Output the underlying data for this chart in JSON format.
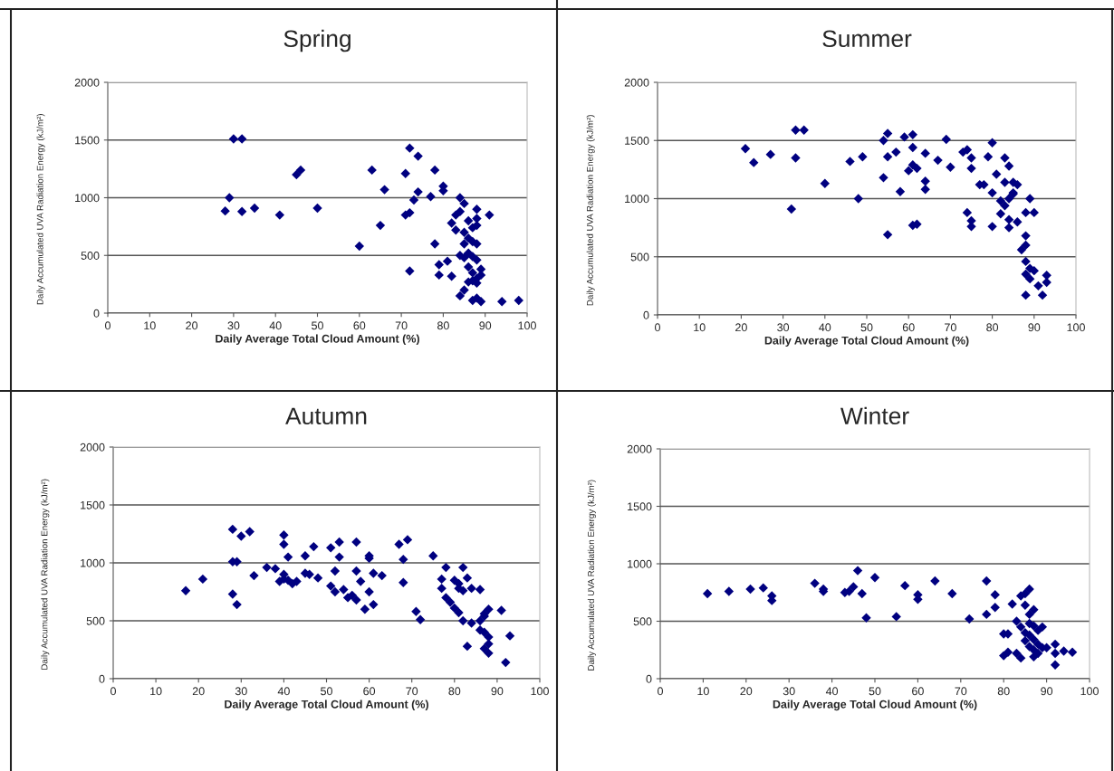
{
  "chart_data": [
    {
      "type": "scatter",
      "title": "Spring",
      "xlabel": "Daily Average Total Cloud Amount (%)",
      "ylabel": "Daily Accumulated UVA Radiation Energy (kJ/m²)",
      "xlim": [
        0,
        100
      ],
      "xticks": [
        0,
        10,
        20,
        30,
        40,
        50,
        60,
        70,
        80,
        90,
        100
      ],
      "ylim": [
        0,
        2000
      ],
      "yticks": [
        0,
        500,
        1000,
        1500,
        2000
      ],
      "grid": "y",
      "marker": "diamond",
      "series": [
        {
          "color": "#000080",
          "x": [
            30,
            32,
            29,
            28,
            32,
            35,
            41,
            50,
            45,
            46,
            60,
            63,
            65,
            66,
            71,
            72,
            74,
            78,
            80,
            80,
            74,
            73,
            77,
            71,
            72,
            72,
            78,
            79,
            79,
            81,
            82,
            84,
            85,
            82,
            83,
            84,
            85,
            84,
            86,
            85,
            87,
            87,
            88,
            88,
            88,
            88,
            91,
            84,
            85,
            86,
            87,
            88,
            86,
            87,
            88,
            89,
            89,
            86,
            87,
            88,
            87,
            88,
            89,
            94,
            98,
            83,
            85,
            86
          ],
          "values": [
            1510,
            1510,
            1000,
            885,
            880,
            910,
            850,
            910,
            1200,
            1240,
            580,
            1240,
            760,
            1070,
            1210,
            1430,
            1360,
            1240,
            1100,
            1060,
            1050,
            980,
            1010,
            850,
            870,
            365,
            600,
            420,
            330,
            450,
            320,
            150,
            200,
            780,
            720,
            1000,
            950,
            880,
            800,
            700,
            740,
            620,
            600,
            900,
            820,
            760,
            850,
            500,
            480,
            520,
            490,
            460,
            400,
            350,
            300,
            380,
            330,
            270,
            280,
            260,
            110,
            130,
            100,
            100,
            110,
            850,
            600,
            650
          ]
        }
      ]
    },
    {
      "type": "scatter",
      "title": "Summer",
      "xlabel": "Daily Average Total Cloud Amount (%)",
      "ylabel": "Daily Accumulated UVA Radiation Energy (kJ/m²)",
      "xlim": [
        0,
        100
      ],
      "xticks": [
        0,
        10,
        20,
        30,
        40,
        50,
        60,
        70,
        80,
        90,
        100
      ],
      "ylim": [
        0,
        2000
      ],
      "yticks": [
        0,
        500,
        1000,
        1500,
        2000
      ],
      "grid": "y",
      "marker": "diamond",
      "series": [
        {
          "color": "#000080",
          "x": [
            21,
            23,
            27,
            33,
            35,
            33,
            32,
            40,
            46,
            49,
            48,
            54,
            55,
            55,
            54,
            55,
            57,
            59,
            58,
            60,
            61,
            61,
            61,
            62,
            61,
            62,
            64,
            64,
            64,
            67,
            69,
            70,
            73,
            74,
            75,
            75,
            74,
            75,
            75,
            77,
            78,
            79,
            80,
            81,
            83,
            84,
            83,
            85,
            86,
            80,
            82,
            83,
            84,
            85,
            82,
            84,
            84,
            86,
            80,
            89,
            88,
            90,
            87,
            88,
            88,
            88,
            89,
            88,
            89,
            90,
            88,
            92,
            93,
            93,
            91,
            85
          ],
          "values": [
            1430,
            1310,
            1380,
            1590,
            1590,
            1350,
            910,
            1130,
            1320,
            1360,
            1000,
            1500,
            1560,
            1360,
            1180,
            690,
            1400,
            1530,
            1060,
            1240,
            1290,
            1550,
            1440,
            1260,
            770,
            780,
            1390,
            1150,
            1080,
            1330,
            1510,
            1270,
            1400,
            1420,
            1350,
            1260,
            880,
            810,
            760,
            1120,
            1120,
            1360,
            1480,
            1210,
            1350,
            1280,
            1140,
            1140,
            1120,
            1050,
            980,
            940,
            1000,
            1040,
            870,
            820,
            750,
            800,
            760,
            1000,
            880,
            880,
            560,
            600,
            680,
            460,
            400,
            350,
            310,
            380,
            170,
            170,
            280,
            340,
            250,
            1050
          ]
        }
      ]
    },
    {
      "type": "scatter",
      "title": "Autumn",
      "xlabel": "Daily Average Total Cloud Amount (%)",
      "ylabel": "Daily Accumulated UVA Radiation Energy (kJ/m²)",
      "xlim": [
        0,
        100
      ],
      "xticks": [
        0,
        10,
        20,
        30,
        40,
        50,
        60,
        70,
        80,
        90,
        100
      ],
      "ylim": [
        0,
        2000
      ],
      "yticks": [
        0,
        500,
        1000,
        1500,
        2000
      ],
      "grid": "y",
      "marker": "diamond",
      "series": [
        {
          "color": "#000080",
          "x": [
            17,
            21,
            28,
            30,
            32,
            28,
            29,
            28,
            29,
            33,
            36,
            38,
            40,
            40,
            41,
            40,
            40,
            41,
            39,
            42,
            43,
            45,
            47,
            45,
            46,
            48,
            51,
            53,
            53,
            52,
            51,
            52,
            54,
            55,
            56,
            57,
            57,
            58,
            57,
            60,
            60,
            61,
            63,
            60,
            59,
            61,
            67,
            69,
            68,
            68,
            71,
            72,
            75,
            78,
            77,
            77,
            78,
            79,
            80,
            81,
            82,
            81,
            82,
            83,
            84,
            86,
            80,
            81,
            82,
            84,
            86,
            87,
            88,
            87,
            86,
            87,
            88,
            88,
            87,
            88,
            83,
            91,
            93,
            92
          ],
          "values": [
            760,
            860,
            1290,
            1230,
            1270,
            1010,
            1010,
            730,
            640,
            890,
            960,
            950,
            1240,
            1160,
            1050,
            900,
            860,
            850,
            840,
            820,
            840,
            1060,
            1140,
            910,
            900,
            870,
            1130,
            1180,
            1050,
            930,
            800,
            750,
            770,
            700,
            720,
            680,
            930,
            840,
            1180,
            1060,
            1040,
            910,
            890,
            750,
            600,
            640,
            1160,
            1200,
            1030,
            830,
            580,
            510,
            1060,
            960,
            860,
            780,
            700,
            660,
            850,
            820,
            760,
            780,
            960,
            870,
            780,
            770,
            610,
            570,
            500,
            480,
            500,
            540,
            600,
            560,
            420,
            400,
            360,
            300,
            260,
            220,
            280,
            590,
            370,
            140
          ]
        }
      ]
    },
    {
      "type": "scatter",
      "title": "Winter",
      "xlabel": "Daily Average Total Cloud Amount (%)",
      "ylabel": "Daily Accumulated UVA Radiation Energy (kJ/m²)",
      "xlim": [
        0,
        100
      ],
      "xticks": [
        0,
        10,
        20,
        30,
        40,
        50,
        60,
        70,
        80,
        90,
        100
      ],
      "ylim": [
        0,
        2000
      ],
      "yticks": [
        0,
        500,
        1000,
        1500,
        2000
      ],
      "grid": "y",
      "marker": "diamond",
      "series": [
        {
          "color": "#000080",
          "x": [
            11,
            16,
            21,
            24,
            26,
            26,
            36,
            38,
            38,
            43,
            44,
            45,
            46,
            47,
            48,
            50,
            55,
            57,
            60,
            60,
            64,
            68,
            72,
            76,
            78,
            76,
            78,
            82,
            84,
            85,
            86,
            85,
            86,
            87,
            86,
            87,
            88,
            83,
            84,
            85,
            80,
            81,
            86,
            87,
            88,
            89,
            85,
            86,
            87,
            88,
            80,
            81,
            83,
            84,
            87,
            92,
            92,
            92,
            94,
            96,
            90,
            89
          ],
          "values": [
            740,
            760,
            780,
            790,
            720,
            680,
            830,
            780,
            760,
            750,
            760,
            800,
            940,
            740,
            530,
            880,
            540,
            810,
            730,
            690,
            850,
            740,
            520,
            850,
            730,
            560,
            620,
            650,
            720,
            740,
            780,
            640,
            560,
            600,
            480,
            460,
            420,
            500,
            450,
            400,
            390,
            390,
            380,
            340,
            300,
            270,
            330,
            280,
            250,
            220,
            200,
            230,
            220,
            180,
            190,
            300,
            220,
            120,
            240,
            230,
            270,
            450
          ]
        }
      ]
    }
  ]
}
